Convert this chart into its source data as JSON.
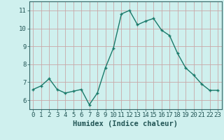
{
  "x": [
    0,
    1,
    2,
    3,
    4,
    5,
    6,
    7,
    8,
    9,
    10,
    11,
    12,
    13,
    14,
    15,
    16,
    17,
    18,
    19,
    20,
    21,
    22,
    23
  ],
  "y": [
    6.6,
    6.8,
    7.2,
    6.6,
    6.4,
    6.5,
    6.6,
    5.75,
    6.4,
    7.8,
    8.9,
    10.8,
    11.0,
    10.2,
    10.4,
    10.55,
    9.9,
    9.6,
    8.6,
    7.8,
    7.4,
    6.9,
    6.55,
    6.55
  ],
  "xlabel": "Humidex (Indice chaleur)",
  "xlim": [
    -0.5,
    23.5
  ],
  "ylim": [
    5.5,
    11.5
  ],
  "yticks": [
    6,
    7,
    8,
    9,
    10,
    11
  ],
  "xticks": [
    0,
    1,
    2,
    3,
    4,
    5,
    6,
    7,
    8,
    9,
    10,
    11,
    12,
    13,
    14,
    15,
    16,
    17,
    18,
    19,
    20,
    21,
    22,
    23
  ],
  "line_color": "#1a7a6a",
  "marker_color": "#1a7a6a",
  "bg_color": "#cff0ee",
  "grid_color_h": "#c8a8a8",
  "grid_color_v": "#c8a8a8",
  "axis_color": "#336666",
  "label_color": "#225555",
  "tick_color": "#225555",
  "font_size_tick": 6.5,
  "font_size_xlabel": 7.5
}
